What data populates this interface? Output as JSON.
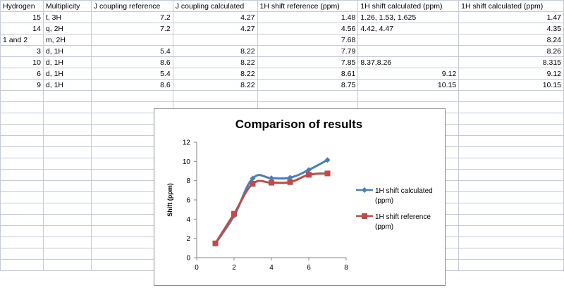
{
  "table": {
    "headers": [
      "Hydrogen",
      "Multiplicity",
      "J coupling reference",
      "J coupling calculated",
      "1H shift reference (ppm)",
      "1H shift calculated (ppm)",
      "1H shift calculated (ppm)"
    ],
    "rows": [
      [
        "15",
        "t, 3H",
        "7.2",
        "4.27",
        "1.48",
        "1.26, 1.53, 1.625",
        "1.47"
      ],
      [
        "14",
        "q, 2H",
        "7.2",
        "4.27",
        "4.56",
        "4.42, 4.47",
        "4.35"
      ],
      [
        "1 and 2",
        "m, 2H",
        "",
        "",
        "7.68",
        "",
        "8.24"
      ],
      [
        "3",
        "d, 1H",
        "5.4",
        "8.22",
        "7.79",
        "",
        "8.26"
      ],
      [
        "10",
        "d, 1H",
        "8.6",
        "8.22",
        "7.85",
        "8.37,8.26",
        "8.315"
      ],
      [
        "6",
        "d, 1H",
        "5.4",
        "8.22",
        "8.61",
        "9.12",
        "9.12"
      ],
      [
        "9",
        "d, 1H",
        "8.6",
        "8.22",
        "8.75",
        "10.15",
        "10.15"
      ]
    ]
  },
  "chart_data": {
    "type": "line",
    "title": "Comparison of results",
    "xlabel": "",
    "ylabel": "Shift (ppm)",
    "xlim": [
      0,
      8
    ],
    "ylim": [
      0,
      12
    ],
    "xticks": [
      "0",
      "2",
      "4",
      "6",
      "8"
    ],
    "yticks": [
      "0",
      "2",
      "4",
      "6",
      "8",
      "10",
      "12"
    ],
    "grid": false,
    "legend": "right",
    "series": [
      {
        "name": "1H shift calculated (ppm)",
        "color": "#4a7ebb",
        "marker": "diamond",
        "x": [
          1,
          2,
          3,
          4,
          5,
          6,
          7
        ],
        "y": [
          1.47,
          4.35,
          8.24,
          8.26,
          8.315,
          9.12,
          10.15
        ]
      },
      {
        "name": "1H shift reference (ppm)",
        "color": "#be4b48",
        "marker": "square",
        "x": [
          1,
          2,
          3,
          4,
          5,
          6,
          7
        ],
        "y": [
          1.48,
          4.56,
          7.68,
          7.79,
          7.85,
          8.61,
          8.75
        ]
      }
    ]
  }
}
